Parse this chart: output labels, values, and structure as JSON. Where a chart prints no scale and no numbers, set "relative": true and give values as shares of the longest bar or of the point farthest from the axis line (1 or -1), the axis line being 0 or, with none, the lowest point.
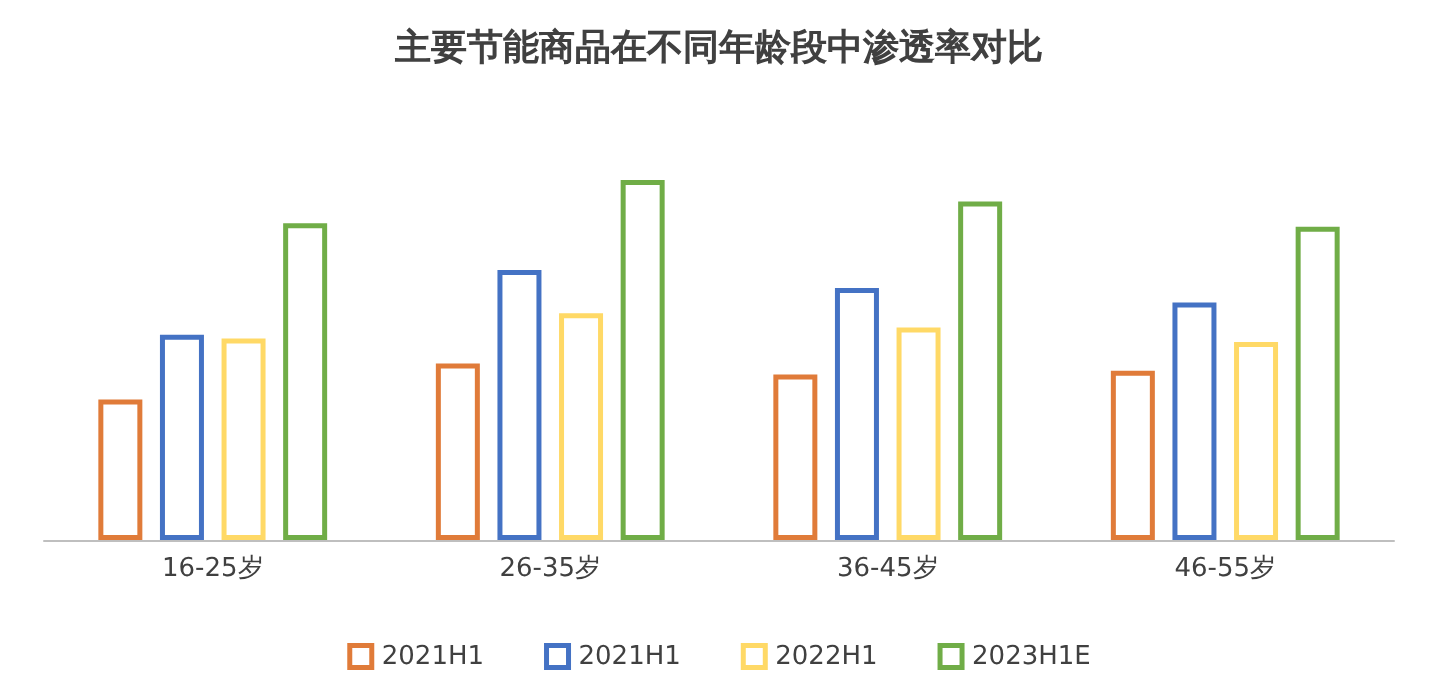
{
  "chart_data": {
    "type": "bar",
    "title": "主要节能商品在不同年龄段中渗透率对比",
    "relative": true,
    "categories": [
      "16-25岁",
      "26-35岁",
      "36-45岁",
      "46-55岁"
    ],
    "series": [
      {
        "name": "2021H1",
        "color": "#e07b39",
        "values": [
          0.39,
          0.49,
          0.46,
          0.47
        ]
      },
      {
        "name": "2021H1",
        "color": "#4472c4",
        "values": [
          0.57,
          0.75,
          0.7,
          0.66
        ]
      },
      {
        "name": "2022H1",
        "color": "#ffd966",
        "values": [
          0.56,
          0.63,
          0.59,
          0.55
        ]
      },
      {
        "name": "2023H1E",
        "color": "#70ad47",
        "values": [
          0.88,
          1,
          0.94,
          0.87
        ]
      }
    ],
    "legend": "bottom"
  }
}
